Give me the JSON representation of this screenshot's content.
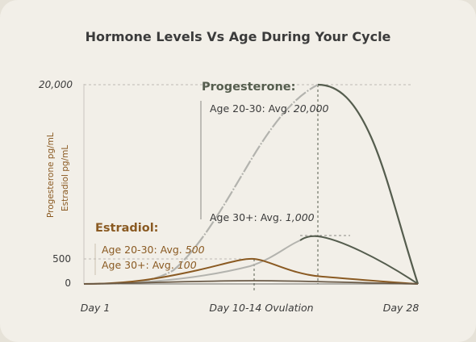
{
  "colors": {
    "progesterone": "#555d4e",
    "progesterone_light": "#b3b3ae",
    "estradiol": "#8a5a22",
    "axis": "#3b3b3b"
  },
  "chart_data": {
    "type": "line",
    "title": "Hormone Levels Vs Age During Your Cycle",
    "ylabel_primary": "Progesterone pg/mL",
    "ylabel_secondary": "Estradiol pg/mL",
    "x_tick_labels": [
      "Day 1",
      "Day 10-14 Ovulation",
      "Day 28"
    ],
    "y_tick_labels": [
      "20,000",
      "500",
      "0"
    ],
    "x_scale": "cycle day",
    "x": [
      1,
      4,
      7,
      10,
      12,
      14,
      17,
      21,
      25,
      28
    ],
    "series": [
      {
        "group": "Progesterone",
        "age": "Age 20-30",
        "values": [
          0.2,
          0.8,
          3.5,
          10.5,
          16.5,
          20.0,
          19.0,
          13.0,
          4.0,
          0.0
        ],
        "unit_note": "thousands on schematic scale"
      },
      {
        "group": "Progesterone",
        "age": "Age 30+",
        "values": [
          0.2,
          0.6,
          1.2,
          2.0,
          4.0,
          5.8,
          5.0,
          3.3,
          1.3,
          0.0
        ]
      },
      {
        "group": "Estradiol",
        "age": "Age 20-30",
        "values": [
          0.1,
          0.6,
          1.5,
          3.0,
          2.2,
          0.8,
          0.6,
          0.4,
          0.2,
          0.0
        ]
      },
      {
        "group": "Estradiol",
        "age": "Age 30+",
        "values": [
          0.1,
          0.2,
          0.4,
          0.5,
          0.3,
          0.2,
          0.2,
          0.15,
          0.1,
          0.0
        ]
      }
    ],
    "annotations": {
      "progesterone_title": "Progesterone:",
      "progesterone_young": "Age 20-30: Avg.",
      "progesterone_young_value": "20,000",
      "progesterone_old": "Age 30+: Avg.",
      "progesterone_old_value": "1,000",
      "estradiol_title": "Estradiol:",
      "estradiol_young": "Age 20-30: Avg.",
      "estradiol_young_value": "500",
      "estradiol_old": "Age 30+:  Avg.",
      "estradiol_old_value": "100"
    },
    "grid": false,
    "legend": "none"
  }
}
